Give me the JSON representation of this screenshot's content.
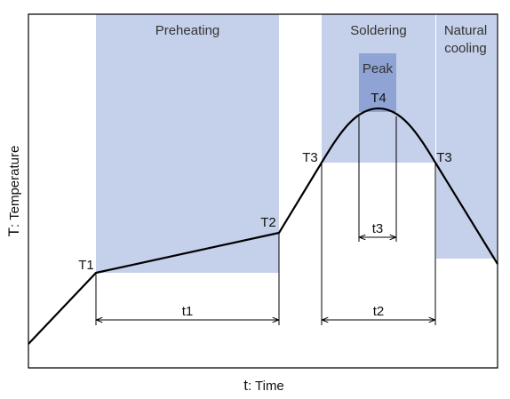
{
  "colors": {
    "zone": "#c5d0ea",
    "peak": "#8fa4d4",
    "curve": "#000000",
    "frame": "#000000",
    "dimension": "#000000"
  },
  "zones": {
    "preheating": "Preheating",
    "soldering": "Soldering",
    "natural_cooling_line1": "Natural",
    "natural_cooling_line2": "cooling",
    "peak": "Peak"
  },
  "temperature_points": {
    "t1": "T1",
    "t2": "T2",
    "t3_left": "T3",
    "t3_right": "T3",
    "t4": "T4"
  },
  "durations": {
    "t1": "t1",
    "t2": "t2",
    "t3": "t3"
  },
  "axes": {
    "y_prefix": "T",
    "y_label": ": Temperature",
    "x_prefix": "t",
    "x_label": ": Time"
  }
}
